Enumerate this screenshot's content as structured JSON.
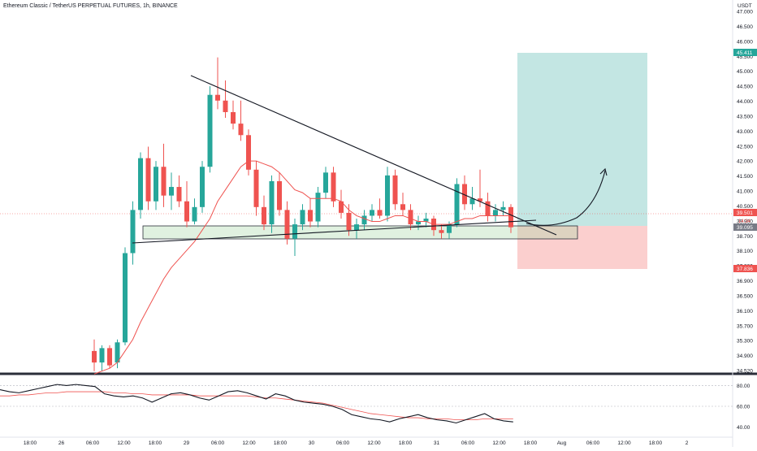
{
  "chart_data": {
    "type": "candlestick",
    "title": "Ethereum Classic / TetherUS PERPETUAL FUTURES, 1h, BINANCE",
    "currency": "USDT",
    "ylim": [
      34.52,
      47.0
    ],
    "price_ticks": [
      "47.000",
      "46.500",
      "46.000",
      "45.500",
      "45.000",
      "44.500",
      "44.000",
      "43.500",
      "43.000",
      "42.500",
      "42.000",
      "41.500",
      "41.000",
      "40.500",
      "39.900",
      "38.700",
      "38.100",
      "37.300",
      "36.900",
      "36.500",
      "36.100",
      "35.700",
      "35.300",
      "34.900",
      "34.520"
    ],
    "time_labels": [
      "18:00",
      "26",
      "06:00",
      "12:00",
      "18:00",
      "29",
      "06:00",
      "12:00",
      "18:00",
      "30",
      "06:00",
      "12:00",
      "18:00",
      "31",
      "06:00",
      "12:00",
      "18:00",
      "Aug",
      "06:00",
      "12:00",
      "18:00",
      "2"
    ],
    "price_markers": {
      "target": "45.411",
      "current": "39.501",
      "countdown": "14:34",
      "entry": "39.095",
      "stop": "37.836"
    },
    "candles": [
      [
        35.2,
        35.6,
        34.5,
        34.8
      ],
      [
        34.8,
        35.4,
        34.5,
        35.3
      ],
      [
        35.3,
        35.4,
        34.6,
        34.7
      ],
      [
        34.8,
        35.6,
        34.6,
        35.5
      ],
      [
        35.5,
        38.8,
        35.4,
        38.6
      ],
      [
        38.6,
        40.4,
        38.2,
        40.1
      ],
      [
        40.1,
        42.1,
        39.8,
        41.9
      ],
      [
        41.9,
        42.3,
        40.1,
        40.4
      ],
      [
        40.4,
        41.8,
        40.1,
        41.6
      ],
      [
        41.6,
        42.4,
        40.2,
        40.6
      ],
      [
        40.6,
        41.4,
        40.1,
        40.9
      ],
      [
        40.9,
        41.3,
        40.2,
        40.4
      ],
      [
        40.4,
        41.1,
        39.5,
        39.7
      ],
      [
        39.7,
        40.5,
        39.6,
        40.2
      ],
      [
        40.2,
        41.8,
        40.0,
        41.6
      ],
      [
        41.6,
        44.4,
        41.4,
        44.1
      ],
      [
        44.1,
        45.4,
        43.6,
        43.9
      ],
      [
        43.9,
        44.6,
        43.3,
        43.5
      ],
      [
        43.5,
        43.9,
        42.9,
        43.1
      ],
      [
        43.1,
        43.9,
        42.5,
        42.7
      ],
      [
        42.7,
        42.9,
        41.3,
        41.5
      ],
      [
        41.5,
        41.8,
        39.9,
        40.2
      ],
      [
        40.2,
        40.6,
        39.4,
        39.6
      ],
      [
        39.6,
        41.3,
        39.3,
        41.1
      ],
      [
        41.1,
        41.4,
        39.9,
        40.1
      ],
      [
        40.1,
        40.4,
        38.9,
        39.1
      ],
      [
        39.1,
        39.8,
        38.5,
        39.6
      ],
      [
        39.6,
        40.3,
        39.4,
        40.1
      ],
      [
        40.1,
        40.5,
        39.5,
        39.7
      ],
      [
        39.7,
        40.9,
        39.5,
        40.7
      ],
      [
        40.7,
        41.6,
        40.5,
        41.4
      ],
      [
        41.4,
        41.6,
        40.2,
        40.4
      ],
      [
        40.4,
        40.8,
        39.8,
        40.0
      ],
      [
        40.0,
        40.3,
        39.2,
        39.4
      ],
      [
        39.4,
        39.8,
        39.1,
        39.6
      ],
      [
        39.6,
        40.1,
        39.4,
        39.9
      ],
      [
        39.9,
        40.3,
        39.7,
        40.1
      ],
      [
        40.1,
        40.5,
        39.8,
        39.9
      ],
      [
        39.9,
        41.6,
        39.7,
        41.3
      ],
      [
        41.3,
        41.5,
        40.1,
        40.3
      ],
      [
        40.3,
        40.7,
        39.9,
        40.1
      ],
      [
        40.1,
        40.3,
        39.4,
        39.6
      ],
      [
        39.6,
        39.9,
        39.4,
        39.7
      ],
      [
        39.7,
        40.0,
        39.5,
        39.8
      ],
      [
        39.8,
        39.9,
        39.2,
        39.4
      ],
      [
        39.4,
        39.6,
        39.1,
        39.3
      ],
      [
        39.3,
        39.7,
        39.1,
        39.6
      ],
      [
        39.6,
        41.2,
        39.5,
        41.0
      ],
      [
        41.0,
        41.3,
        40.1,
        40.3
      ],
      [
        40.3,
        40.9,
        40.1,
        40.5
      ],
      [
        40.5,
        41.5,
        40.2,
        40.4
      ],
      [
        40.4,
        40.7,
        39.7,
        39.9
      ],
      [
        39.9,
        40.3,
        39.7,
        40.1
      ],
      [
        40.1,
        40.4,
        39.9,
        40.2
      ],
      [
        40.2,
        40.3,
        39.3,
        39.5
      ]
    ],
    "ma": [
      34.4,
      34.5,
      34.6,
      34.8,
      35.2,
      35.6,
      36.2,
      36.7,
      37.2,
      37.7,
      38.1,
      38.4,
      38.7,
      39.0,
      39.4,
      39.8,
      40.4,
      40.8,
      41.2,
      41.6,
      41.8,
      41.8,
      41.7,
      41.6,
      41.4,
      41.1,
      40.8,
      40.7,
      40.5,
      40.5,
      40.5,
      40.5,
      40.4,
      40.1,
      39.9,
      39.8,
      39.7,
      39.7,
      39.8,
      39.9,
      39.9,
      39.8,
      39.7,
      39.7,
      39.6,
      39.6,
      39.6,
      39.7,
      39.8,
      39.8,
      39.9,
      39.9,
      39.9,
      39.9,
      39.9
    ],
    "rsi": {
      "ticks": [
        "80.00",
        "60.00",
        "40.00"
      ],
      "values": [
        76,
        74,
        73,
        75,
        77,
        79,
        81,
        80,
        81,
        80,
        79,
        72,
        70,
        69,
        70,
        68,
        64,
        68,
        72,
        73,
        71,
        68,
        66,
        70,
        74,
        75,
        73,
        70,
        67,
        72,
        70,
        66,
        64,
        63,
        62,
        60,
        57,
        52,
        50,
        48,
        47,
        45,
        48,
        50,
        52,
        49,
        47,
        46,
        44,
        47,
        50,
        53,
        48,
        46,
        45
      ],
      "signal": [
        70,
        70,
        71,
        71,
        72,
        73,
        73,
        74,
        74,
        74,
        74,
        74,
        73,
        73,
        72,
        72,
        71,
        71,
        71,
        71,
        71,
        70,
        70,
        70,
        70,
        70,
        70,
        69,
        68,
        68,
        67,
        66,
        65,
        64,
        63,
        61,
        59,
        57,
        55,
        53,
        52,
        51,
        50,
        49,
        49,
        48,
        48,
        48,
        47,
        47,
        47,
        48,
        48,
        48,
        48
      ]
    }
  }
}
